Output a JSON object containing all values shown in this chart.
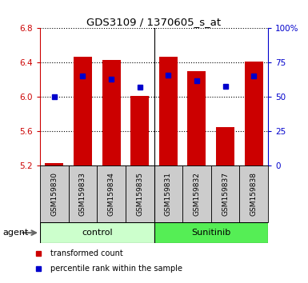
{
  "title": "GDS3109 / 1370605_s_at",
  "samples": [
    "GSM159830",
    "GSM159833",
    "GSM159834",
    "GSM159835",
    "GSM159831",
    "GSM159832",
    "GSM159837",
    "GSM159838"
  ],
  "transformed_count": [
    5.23,
    6.47,
    6.43,
    6.01,
    6.47,
    6.3,
    5.65,
    6.41
  ],
  "percentile_rank": [
    50,
    65,
    63,
    57,
    66,
    62,
    58,
    65
  ],
  "ylim_left": [
    5.2,
    6.8
  ],
  "ylim_right": [
    0,
    100
  ],
  "yticks_left": [
    5.2,
    5.6,
    6.0,
    6.4,
    6.8
  ],
  "yticks_right": [
    0,
    25,
    50,
    75,
    100
  ],
  "ytick_labels_right": [
    "0",
    "25",
    "50",
    "75",
    "100%"
  ],
  "bar_color": "#cc0000",
  "dot_color": "#0000cc",
  "bar_bottom": 5.2,
  "control_bg": "#ccffcc",
  "sunitinib_bg": "#55ee55",
  "xtick_bg": "#cccccc",
  "group_label_control": "control",
  "group_label_sunitinib": "Sunitinib",
  "agent_label": "agent",
  "legend_bar": "transformed count",
  "legend_dot": "percentile rank within the sample",
  "left_axis_color": "#cc0000",
  "right_axis_color": "#0000cc",
  "fig_width": 3.85,
  "fig_height": 3.54,
  "n_control": 4
}
